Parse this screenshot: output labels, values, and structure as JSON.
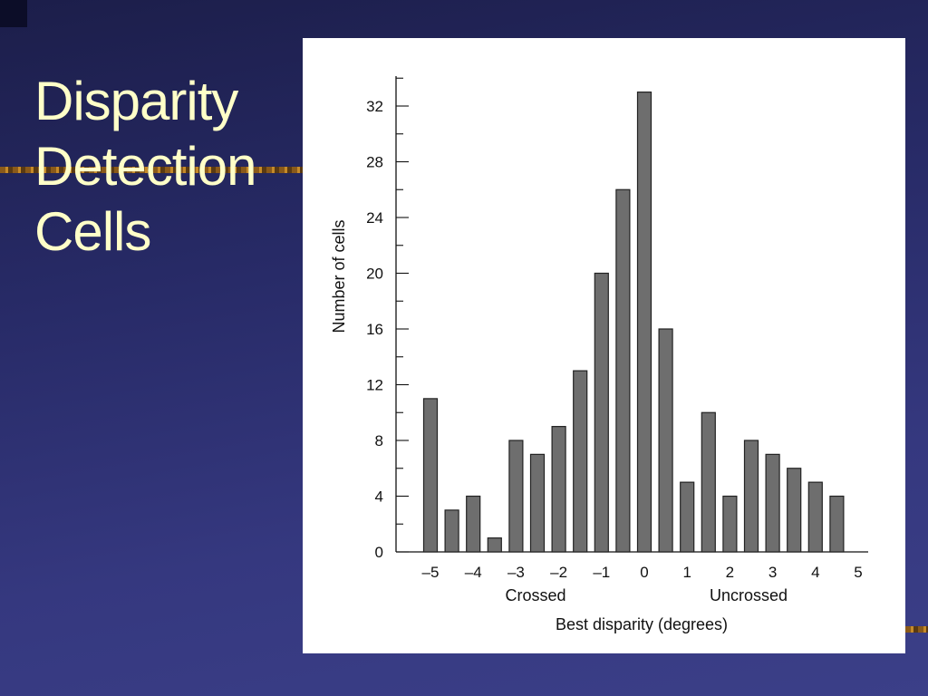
{
  "slide": {
    "title_lines": [
      "Disparity",
      "Detection",
      "Cells"
    ]
  },
  "colors": {
    "background": "#2f3278",
    "title_text": "#ffffc8",
    "bar_fill": "#6e6e6e",
    "bar_stroke": "#222222"
  },
  "chart_data": {
    "type": "bar",
    "ylabel": "Number of cells",
    "xlabel": "Best disparity (degrees)",
    "group_labels": [
      "Crossed",
      "Uncrossed"
    ],
    "x_ticks": [
      "–5",
      "–4",
      "–3",
      "–2",
      "–1",
      "0",
      "1",
      "2",
      "3",
      "4",
      "5"
    ],
    "y_ticks": [
      "0",
      "4",
      "8",
      "12",
      "16",
      "20",
      "24",
      "28",
      "32"
    ],
    "ylim": [
      0,
      34
    ],
    "xlim": [
      -5.5,
      5.3
    ],
    "bars": [
      {
        "x": -5.0,
        "value": 11
      },
      {
        "x": -4.5,
        "value": 3
      },
      {
        "x": -4.0,
        "value": 4
      },
      {
        "x": -3.5,
        "value": 1
      },
      {
        "x": -3.0,
        "value": 8
      },
      {
        "x": -2.5,
        "value": 7
      },
      {
        "x": -2.0,
        "value": 9
      },
      {
        "x": -1.5,
        "value": 13
      },
      {
        "x": -1.0,
        "value": 20
      },
      {
        "x": -0.5,
        "value": 26
      },
      {
        "x": 0.0,
        "value": 33
      },
      {
        "x": 0.5,
        "value": 16
      },
      {
        "x": 1.0,
        "value": 5
      },
      {
        "x": 1.5,
        "value": 10
      },
      {
        "x": 2.0,
        "value": 4
      },
      {
        "x": 2.5,
        "value": 8
      },
      {
        "x": 3.0,
        "value": 7
      },
      {
        "x": 3.5,
        "value": 6
      },
      {
        "x": 4.0,
        "value": 5
      },
      {
        "x": 4.5,
        "value": 4
      }
    ],
    "grid": false,
    "legend": "none"
  }
}
